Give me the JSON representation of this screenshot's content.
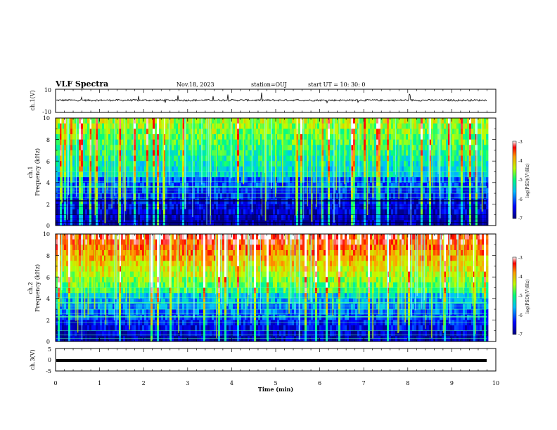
{
  "header": {
    "title": "VLF Spectra",
    "date": "Nov.18, 2023",
    "station": "station=OUJ",
    "start": "start  UT =   10: 30: 0"
  },
  "chart_data": [
    {
      "type": "line",
      "panel": "ch1-waveform",
      "ylabel": "ch.1(V)",
      "ylim": [
        -10,
        10
      ],
      "yticks": [
        "10",
        "-10"
      ],
      "xlim": [
        0,
        10
      ],
      "signal_end_min": 9.8,
      "baseline_v": 0.5
    },
    {
      "type": "heatmap",
      "panel": "ch1-spectrogram",
      "ylabel": "ch.1\nFrequency (kHz)",
      "ylim": [
        0,
        10
      ],
      "yticks": [
        "0",
        "2",
        "4",
        "6",
        "8",
        "10"
      ],
      "xlim": [
        0,
        10
      ],
      "colorbar": {
        "label": "log(PSD)(V²/Hz)",
        "range": [
          -7,
          -3
        ],
        "ticks": [
          "-3",
          "-4",
          "-5",
          "-6",
          "-7"
        ]
      }
    },
    {
      "type": "heatmap",
      "panel": "ch2-spectrogram",
      "ylabel": "ch.2\nFrequency (kHz)",
      "ylim": [
        0,
        10
      ],
      "yticks": [
        "0",
        "2",
        "4",
        "6",
        "8",
        "10"
      ],
      "xlim": [
        0,
        10
      ],
      "colorbar": {
        "label": "log(PSD)(V²/Hz)",
        "range": [
          -7,
          -3
        ],
        "ticks": [
          "-3",
          "-4",
          "-5",
          "-6",
          "-7"
        ]
      }
    },
    {
      "type": "line",
      "panel": "ch3-waveform",
      "ylabel": "ch.3(V)",
      "ylim": [
        -5,
        5
      ],
      "yticks": [
        "5",
        "0",
        "-5"
      ],
      "xlim": [
        0,
        10
      ],
      "signal_end_min": 9.8,
      "baseline_v": -0.3
    }
  ],
  "xaxis": {
    "label": "Time  (min)",
    "ticks": [
      "0",
      "1",
      "2",
      "3",
      "4",
      "5",
      "6",
      "7",
      "8",
      "9",
      "10"
    ]
  },
  "colors": {
    "spec_low": "#000080",
    "spec_high": "#ff0000"
  }
}
